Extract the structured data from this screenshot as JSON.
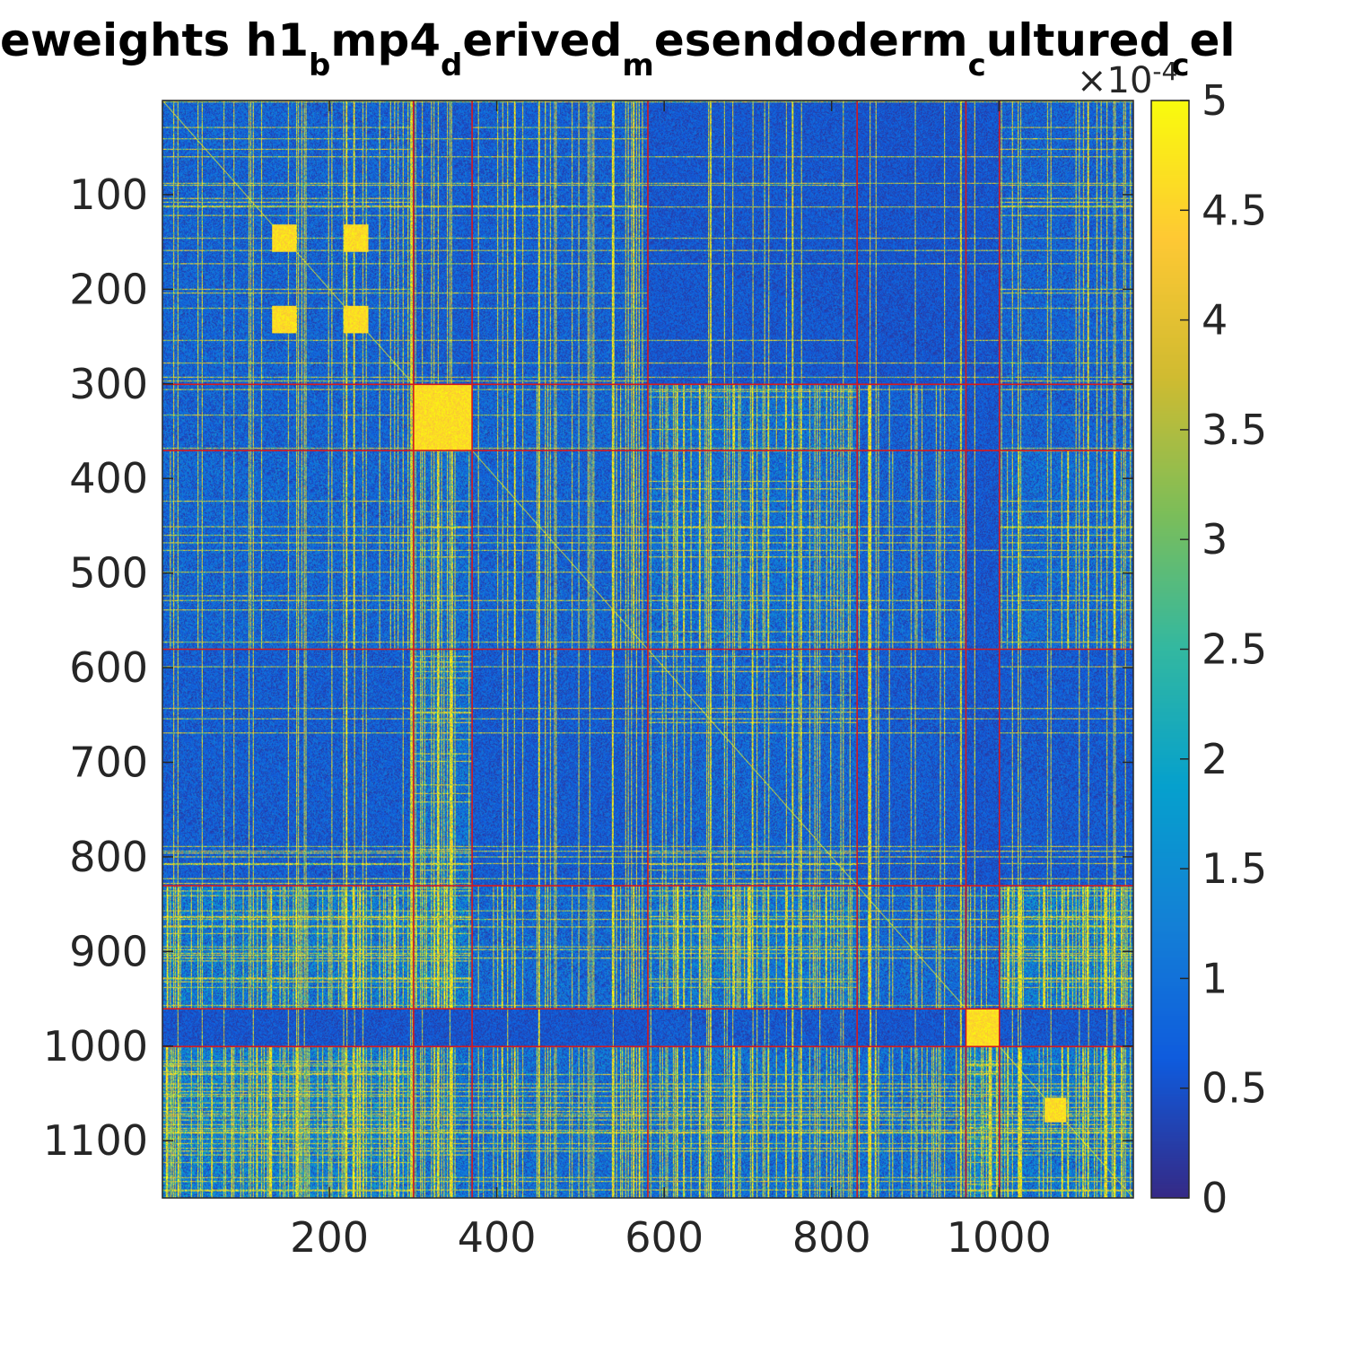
{
  "chart_data": {
    "type": "heatmap",
    "title": {
      "segments": [
        {
          "text": "eweights h1",
          "sub": false
        },
        {
          "text": "b",
          "sub": true
        },
        {
          "text": "mp4",
          "sub": false
        },
        {
          "text": "d",
          "sub": true
        },
        {
          "text": "erived",
          "sub": false
        },
        {
          "text": "m",
          "sub": true
        },
        {
          "text": "esendoderm",
          "sub": false
        },
        {
          "text": "c",
          "sub": true
        },
        {
          "text": "ultured",
          "sub": false
        },
        {
          "text": "c",
          "sub": true
        },
        {
          "text": "el",
          "sub": false
        }
      ]
    },
    "xlabel": "",
    "ylabel": "",
    "n": 1160,
    "xlim": [
      0.5,
      1160.5
    ],
    "ylim": [
      0.5,
      1160.5
    ],
    "x_ticks": [
      "200",
      "400",
      "600",
      "800",
      "1000"
    ],
    "x_tick_values": [
      200,
      400,
      600,
      800,
      1000
    ],
    "y_ticks": [
      "100",
      "200",
      "300",
      "400",
      "500",
      "600",
      "700",
      "800",
      "900",
      "1000",
      "1100"
    ],
    "y_tick_values": [
      100,
      200,
      300,
      400,
      500,
      600,
      700,
      800,
      900,
      1000,
      1100
    ],
    "colorbar": {
      "range": [
        0,
        5
      ],
      "multiplier": "×10",
      "exponent": "-4",
      "ticks": [
        "0",
        "0.5",
        "1",
        "1.5",
        "2",
        "2.5",
        "3",
        "3.5",
        "4",
        "4.5",
        "5"
      ],
      "tick_values": [
        0,
        0.5,
        1,
        1.5,
        2,
        2.5,
        3,
        3.5,
        4,
        4.5,
        5
      ],
      "colormap": "parula"
    },
    "cluster_boundaries": [
      300,
      370,
      580,
      830,
      960,
      1000
    ],
    "boundary_color": "#d7191c",
    "clusters": [
      {
        "range": [
          1,
          300
        ]
      },
      {
        "range": [
          301,
          370
        ]
      },
      {
        "range": [
          371,
          580
        ]
      },
      {
        "range": [
          581,
          830
        ]
      },
      {
        "range": [
          831,
          960
        ]
      },
      {
        "range": [
          961,
          1000
        ]
      },
      {
        "range": [
          1001,
          1160
        ]
      }
    ],
    "block_mean_levels": [
      [
        0.35,
        0.25,
        0.3,
        0.15,
        0.1,
        0.12,
        0.35
      ],
      [
        0.35,
        0.95,
        0.4,
        0.6,
        0.3,
        0.15,
        0.35
      ],
      [
        0.4,
        0.5,
        0.35,
        0.55,
        0.35,
        0.15,
        0.5
      ],
      [
        0.25,
        0.6,
        0.22,
        0.4,
        0.22,
        0.12,
        0.2
      ],
      [
        0.75,
        0.85,
        0.45,
        0.7,
        0.45,
        0.45,
        0.85
      ],
      [
        0.12,
        0.1,
        0.1,
        0.2,
        0.12,
        1.0,
        0.15
      ],
      [
        0.85,
        0.65,
        0.55,
        0.6,
        0.55,
        0.95,
        0.7
      ]
    ],
    "highlighted_blocks": [
      {
        "x": [
          132,
          160
        ],
        "y": [
          132,
          160
        ]
      },
      {
        "x": [
          218,
          246
        ],
        "y": [
          132,
          160
        ]
      },
      {
        "x": [
          132,
          160
        ],
        "y": [
          218,
          246
        ]
      },
      {
        "x": [
          218,
          246
        ],
        "y": [
          218,
          246
        ]
      },
      {
        "x": [
          301,
          370
        ],
        "y": [
          301,
          370
        ]
      },
      {
        "x": [
          961,
          1000
        ],
        "y": [
          961,
          1000
        ]
      },
      {
        "x": [
          1055,
          1080
        ],
        "y": [
          1055,
          1080
        ]
      }
    ]
  }
}
